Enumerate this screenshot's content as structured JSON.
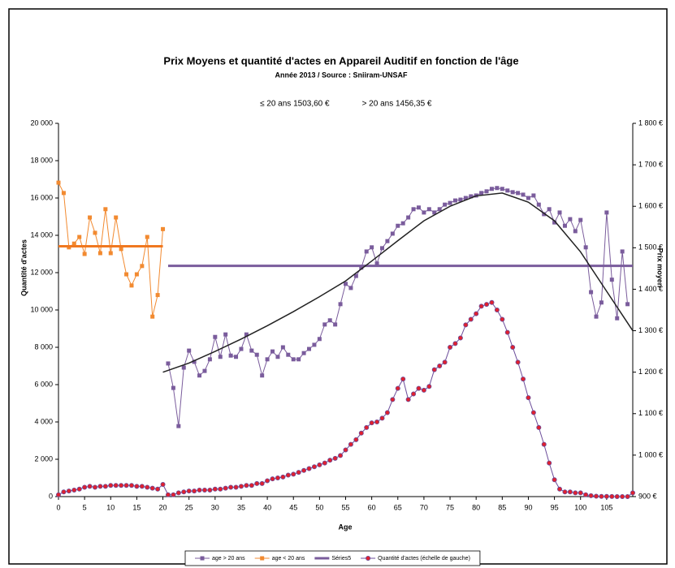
{
  "chart_data": {
    "type": "line",
    "title": "Prix Moyens et quantité d'actes en Appareil Auditif en fonction de l'âge",
    "subtitle": "Année 2013 / Source : Sniiram-UNSAF",
    "annotations": [
      {
        "text": "≤ 20 ans 1503,60 €",
        "color": "#f07820"
      },
      {
        "text": "> 20 ans 1456,35 €",
        "color": "#000000"
      }
    ],
    "x_label": "Age",
    "y_label": "Quantité d'actes",
    "y2_label": "Prix moyen",
    "xlim": [
      0,
      110
    ],
    "xticks": [
      0,
      5,
      10,
      15,
      20,
      25,
      30,
      35,
      40,
      45,
      50,
      55,
      60,
      65,
      70,
      75,
      80,
      85,
      90,
      95,
      100,
      105
    ],
    "ylim": [
      0,
      20000
    ],
    "yticks": [
      0,
      {
        "value": 2000,
        "label": "2 000"
      },
      {
        "value": 4000,
        "label": "4 000"
      },
      {
        "value": 6000,
        "label": "6 000"
      },
      {
        "value": 8000,
        "label": "8 000"
      },
      {
        "value": 10000,
        "label": "10 000"
      },
      {
        "value": 12000,
        "label": "12 000"
      },
      {
        "value": 14000,
        "label": "14 000"
      },
      {
        "value": 16000,
        "label": "16 000"
      },
      {
        "value": 18000,
        "label": "18 000"
      },
      {
        "value": 20000,
        "label": "20 000"
      }
    ],
    "y2lim": [
      900,
      1800
    ],
    "y2ticks": [
      {
        "value": 900,
        "label": "900 €"
      },
      {
        "value": 1000,
        "label": "1 000 €"
      },
      {
        "value": 1100,
        "label": "1 100 €"
      },
      {
        "value": 1200,
        "label": "1 200 €"
      },
      {
        "value": 1300,
        "label": "1 300 €"
      },
      {
        "value": 1400,
        "label": "1 400 €"
      },
      {
        "value": 1500,
        "label": "1 500 €"
      },
      {
        "value": 1600,
        "label": "1 600 €"
      },
      {
        "value": 1700,
        "label": "1 700 €"
      },
      {
        "value": 1800,
        "label": "1 800 €"
      }
    ],
    "series": [
      {
        "name": "age > 20 ans",
        "color": "#7a5c9c",
        "axis": "y2",
        "marker": "square",
        "x": [
          21,
          22,
          23,
          24,
          25,
          26,
          27,
          28,
          29,
          30,
          31,
          32,
          33,
          34,
          35,
          36,
          37,
          38,
          39,
          40,
          41,
          42,
          43,
          44,
          45,
          46,
          47,
          48,
          49,
          50,
          51,
          52,
          53,
          54,
          55,
          56,
          57,
          58,
          59,
          60,
          61,
          62,
          63,
          64,
          65,
          66,
          67,
          68,
          69,
          70,
          71,
          72,
          73,
          74,
          75,
          76,
          77,
          78,
          79,
          80,
          81,
          82,
          83,
          84,
          85,
          86,
          87,
          88,
          89,
          90,
          91,
          92,
          93,
          94,
          95,
          96,
          97,
          98,
          99,
          100,
          101,
          102,
          103,
          104,
          105,
          106,
          107,
          108,
          109
        ],
        "values": [
          1221,
          1162,
          1070,
          1211,
          1252,
          1225,
          1192,
          1203,
          1231,
          1285,
          1237,
          1291,
          1240,
          1237,
          1256,
          1291,
          1252,
          1242,
          1192,
          1231,
          1250,
          1237,
          1260,
          1242,
          1231,
          1231,
          1246,
          1256,
          1266,
          1280,
          1315,
          1325,
          1315,
          1364,
          1413,
          1403,
          1432,
          1452,
          1491,
          1501,
          1462,
          1499,
          1516,
          1534,
          1553,
          1559,
          1573,
          1593,
          1597,
          1585,
          1593,
          1585,
          1593,
          1604,
          1608,
          1614,
          1616,
          1620,
          1624,
          1626,
          1632,
          1636,
          1642,
          1644,
          1642,
          1638,
          1634,
          1632,
          1628,
          1620,
          1626,
          1604,
          1581,
          1593,
          1561,
          1585,
          1553,
          1569,
          1540,
          1567,
          1501,
          1393,
          1334,
          1368,
          1585,
          1423,
          1330,
          1491,
          1364
        ]
      },
      {
        "name": "age < 20 ans",
        "color": "#f28a30",
        "axis": "y2",
        "marker": "square",
        "x": [
          0,
          1,
          2,
          3,
          4,
          5,
          6,
          7,
          8,
          9,
          10,
          11,
          12,
          13,
          14,
          15,
          16,
          17,
          18,
          19,
          20
        ],
        "values": [
          1657,
          1632,
          1501,
          1510,
          1526,
          1485,
          1573,
          1536,
          1487,
          1593,
          1487,
          1573,
          1497,
          1436,
          1409,
          1436,
          1456,
          1526,
          1334,
          1386,
          1545
        ]
      },
      {
        "name": "Séries5",
        "color": "#7a5c9c",
        "axis": "y2",
        "width": 3,
        "x": [
          21,
          110
        ],
        "values": [
          1456.35,
          1456.35
        ]
      },
      {
        "name": "Quantité d'actes (échelle de gauche)",
        "color": "#6b4c9a",
        "marker": "circle",
        "marker_color": "#e0202e",
        "x": [
          0,
          1,
          2,
          3,
          4,
          5,
          6,
          7,
          8,
          9,
          10,
          11,
          12,
          13,
          14,
          15,
          16,
          17,
          18,
          19,
          20,
          21,
          22,
          23,
          24,
          25,
          26,
          27,
          28,
          29,
          30,
          31,
          32,
          33,
          34,
          35,
          36,
          37,
          38,
          39,
          40,
          41,
          42,
          43,
          44,
          45,
          46,
          47,
          48,
          49,
          50,
          51,
          52,
          53,
          54,
          55,
          56,
          57,
          58,
          59,
          60,
          61,
          62,
          63,
          64,
          65,
          66,
          67,
          68,
          69,
          70,
          71,
          72,
          73,
          74,
          75,
          76,
          77,
          78,
          79,
          80,
          81,
          82,
          83,
          84,
          85,
          86,
          87,
          88,
          89,
          90,
          91,
          92,
          93,
          94,
          95,
          96,
          97,
          98,
          99,
          100,
          101,
          102,
          103,
          104,
          105,
          106,
          107,
          108,
          109,
          110
        ],
        "values": [
          100,
          250,
          300,
          350,
          400,
          500,
          550,
          500,
          550,
          550,
          600,
          600,
          600,
          600,
          600,
          550,
          550,
          500,
          450,
          400,
          650,
          100,
          100,
          200,
          250,
          300,
          300,
          350,
          350,
          350,
          400,
          400,
          450,
          500,
          500,
          550,
          600,
          600,
          700,
          700,
          850,
          950,
          1000,
          1050,
          1150,
          1200,
          1300,
          1400,
          1500,
          1600,
          1700,
          1800,
          1950,
          2050,
          2200,
          2500,
          2800,
          3050,
          3400,
          3700,
          3950,
          4000,
          4200,
          4500,
          5200,
          5800,
          6300,
          5200,
          5500,
          5800,
          5700,
          5900,
          6800,
          7000,
          7200,
          8000,
          8200,
          8500,
          9200,
          9500,
          9800,
          10200,
          10300,
          10400,
          10000,
          9500,
          8800,
          8000,
          7200,
          6300,
          5300,
          4500,
          3700,
          2800,
          1800,
          900,
          400,
          250,
          250,
          200,
          200,
          100,
          50,
          20,
          10,
          10,
          5,
          0,
          0,
          0,
          200
        ]
      },
      {
        "color": "#f07820",
        "axis": "y2",
        "width": 3,
        "x": [
          0,
          20
        ],
        "values": [
          1503.6,
          1503.6
        ]
      },
      {
        "color": "#222222",
        "axis": "y2",
        "width": 1.5,
        "x": [
          20,
          25,
          30,
          35,
          40,
          45,
          50,
          55,
          60,
          65,
          70,
          75,
          80,
          85,
          90,
          95,
          100,
          105,
          110
        ],
        "values": [
          1200,
          1222,
          1250,
          1280,
          1312,
          1346,
          1382,
          1420,
          1468,
          1517,
          1565,
          1600,
          1625,
          1632,
          1610,
          1565,
          1490,
          1395,
          1300
        ]
      }
    ]
  }
}
